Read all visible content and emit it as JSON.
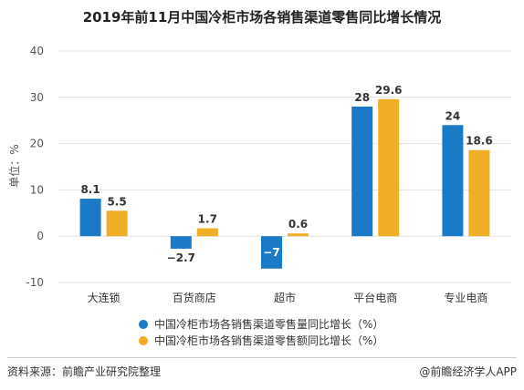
{
  "chart_data": {
    "type": "bar",
    "title": "2019年前11月中国冷柜市场各销售渠道零售同比增长情况",
    "ylabel": "单位：%",
    "xlabel": "",
    "ylim": [
      -10,
      40
    ],
    "yticks": [
      40,
      30,
      20,
      10,
      0,
      -10
    ],
    "grid": true,
    "legend_position": "bottom",
    "categories": [
      "大连锁",
      "百货商店",
      "超市",
      "平台电商",
      "专业电商"
    ],
    "series": [
      {
        "name": "中国冷柜市场各销售渠道零售量同比增长（%）",
        "color": "#1a7ac8",
        "values": [
          8.1,
          -2.7,
          -7,
          28,
          24
        ],
        "labels": [
          "8.1",
          "−2.7",
          "−7",
          "28",
          "24"
        ]
      },
      {
        "name": "中国冷柜市场各销售渠道零售额同比增长（%）",
        "color": "#f0ae26",
        "values": [
          5.5,
          1.7,
          0.6,
          29.6,
          18.6
        ],
        "labels": [
          "5.5",
          "1.7",
          "0.6",
          "29.6",
          "18.6"
        ]
      }
    ]
  },
  "footer": {
    "source": "资料来源：前瞻产业研究院整理",
    "brand": "@前瞻经济学人APP"
  }
}
